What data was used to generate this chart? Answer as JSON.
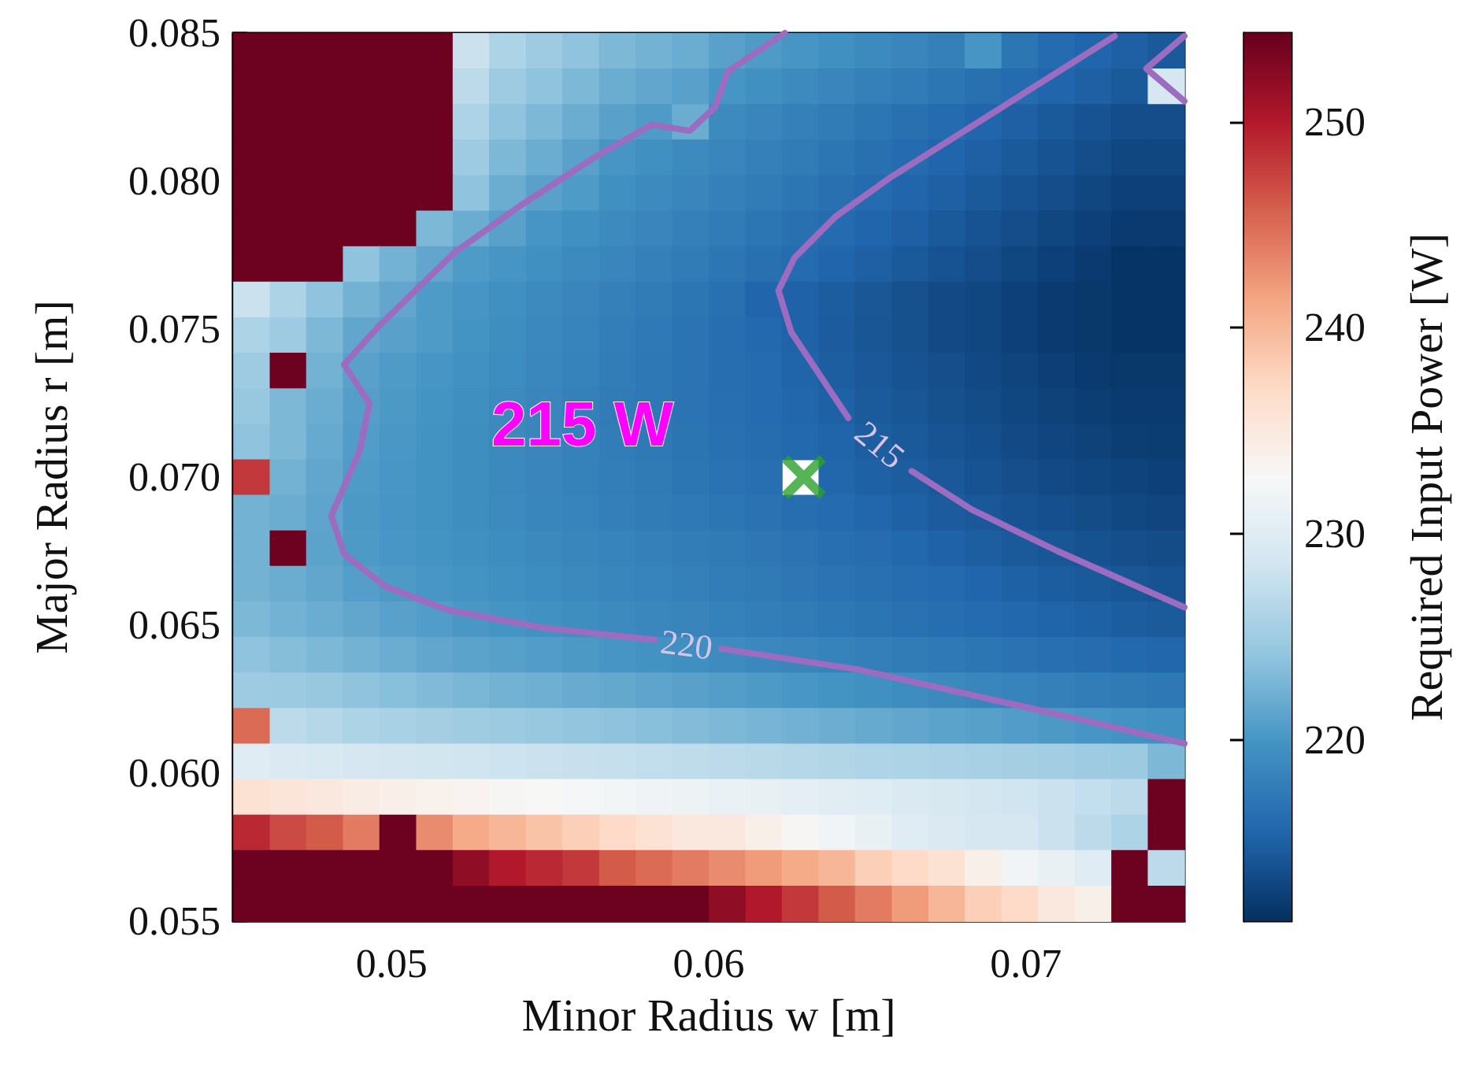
{
  "chart_data": {
    "type": "heatmap",
    "xlabel": "Minor Radius w [m]",
    "ylabel": "Major Radius r [m]",
    "clabel": "Required Input Power [W]",
    "x": [
      0.04558,
      0.04673,
      0.04788,
      0.04904,
      0.05019,
      0.05135,
      0.0525,
      0.05365,
      0.05481,
      0.05596,
      0.05712,
      0.05827,
      0.05942,
      0.06058,
      0.06173,
      0.06288,
      0.06404,
      0.06519,
      0.06635,
      0.0675,
      0.06865,
      0.06981,
      0.07096,
      0.07212,
      0.07327,
      0.07442
    ],
    "y": [
      0.0844,
      0.0832,
      0.082,
      0.0808,
      0.0796,
      0.0784,
      0.0772,
      0.076,
      0.0748,
      0.0736,
      0.0724,
      0.0712,
      0.07,
      0.0688,
      0.0676,
      0.0664,
      0.0652,
      0.064,
      0.0628,
      0.0616,
      0.0604,
      0.0592,
      0.058,
      0.0568,
      0.0556
    ],
    "cells": [
      [
        254,
        254,
        254,
        254,
        254,
        254,
        228,
        226,
        225,
        224,
        223,
        222.5,
        222,
        221,
        220.5,
        220,
        219.5,
        219,
        218.5,
        218,
        220,
        217,
        216,
        215.5,
        215,
        214.5
      ],
      [
        254,
        254,
        254,
        254,
        254,
        254,
        227,
        225,
        224,
        223,
        222,
        221.5,
        221,
        220,
        219.5,
        219,
        218.5,
        218,
        217.5,
        217,
        216.5,
        216,
        215.5,
        215,
        214.5,
        229
      ],
      [
        254,
        254,
        254,
        254,
        254,
        254,
        226,
        224,
        223,
        222,
        221,
        220.5,
        222,
        219,
        218.5,
        218,
        217.5,
        217,
        216.5,
        216,
        215.5,
        215,
        214.5,
        214,
        213.5,
        213.5
      ],
      [
        254,
        254,
        254,
        254,
        254,
        254,
        225,
        223,
        222,
        221,
        220,
        219.5,
        219,
        218.5,
        218,
        217.5,
        217,
        216.5,
        216,
        215.5,
        215,
        214.5,
        214,
        213.5,
        213,
        213
      ],
      [
        254,
        254,
        254,
        254,
        254,
        254,
        224,
        222,
        221,
        220.5,
        219.5,
        219,
        218.5,
        218,
        217.5,
        217,
        216.5,
        216,
        215.5,
        215,
        214.5,
        214,
        213.5,
        213,
        212.5,
        212.5
      ],
      [
        254,
        254,
        254,
        254,
        254,
        223,
        222,
        221,
        220,
        219.5,
        219,
        218.5,
        218,
        217.5,
        217,
        216.5,
        216,
        215.5,
        215,
        214.5,
        214,
        213.5,
        213,
        212.5,
        212,
        212
      ],
      [
        254,
        254,
        254,
        224,
        222.5,
        221.5,
        220.5,
        220,
        219.5,
        219,
        218.5,
        218,
        217.5,
        217,
        216.5,
        216,
        215.5,
        215,
        214.5,
        214,
        213.5,
        213,
        212.5,
        212,
        211.5,
        211.5
      ],
      [
        228,
        226,
        224,
        222.5,
        221.5,
        220.5,
        220,
        219.5,
        219,
        218.5,
        218,
        217.5,
        217,
        216.5,
        215.5,
        215.2,
        214.8,
        214.3,
        213.8,
        213.3,
        213,
        212.5,
        212,
        211.8,
        211.5,
        211.5
      ],
      [
        226,
        225,
        223,
        221.5,
        221,
        220.5,
        219.8,
        219.3,
        218.8,
        218.3,
        217.8,
        217.3,
        216.8,
        216.3,
        215.8,
        215.2,
        214.7,
        214.2,
        213.8,
        213.3,
        213,
        212.5,
        212,
        211.8,
        211.5,
        211.5
      ],
      [
        225,
        254,
        222.5,
        221,
        220.5,
        220,
        219.6,
        219.2,
        218.7,
        218.2,
        217.7,
        217.2,
        216.8,
        216.3,
        216,
        215.4,
        214.9,
        214.4,
        214,
        213.6,
        213.2,
        212.8,
        212.4,
        212,
        211.8,
        211.8
      ],
      [
        224.5,
        223,
        222,
        220.8,
        220.3,
        219.8,
        219.4,
        219,
        218.5,
        218,
        217.6,
        217.2,
        216.8,
        216.4,
        216,
        215.6,
        215.1,
        214.6,
        214.2,
        213.8,
        213.4,
        213,
        212.6,
        212.3,
        212,
        212
      ],
      [
        224,
        223,
        221.8,
        220.6,
        220.2,
        219.7,
        219.3,
        218.9,
        218.5,
        218.1,
        217.7,
        217.3,
        216.9,
        216.5,
        216.2,
        215.8,
        215.4,
        214.9,
        214.5,
        214.1,
        213.7,
        213.3,
        212.9,
        212.6,
        212.3,
        212.2
      ],
      [
        248,
        222.5,
        221.5,
        220.5,
        220.1,
        219.7,
        219.3,
        218.9,
        218.5,
        218.1,
        217.8,
        217.4,
        217,
        216.7,
        216.4,
        null,
        215.6,
        215.1,
        214.8,
        214.4,
        214,
        213.6,
        213.3,
        213,
        212.7,
        212.5
      ],
      [
        222.5,
        222,
        221.3,
        220.3,
        220,
        219.7,
        219.3,
        219,
        218.6,
        218.3,
        217.9,
        217.6,
        217.3,
        217,
        216.7,
        216.3,
        216,
        215.6,
        215.1,
        214.7,
        214.4,
        214,
        213.7,
        213.4,
        213.1,
        212.9
      ],
      [
        222.5,
        254,
        221.2,
        220.4,
        220.1,
        219.8,
        219.5,
        219.2,
        218.9,
        218.6,
        218.3,
        218,
        217.7,
        217.4,
        217.1,
        216.8,
        216.4,
        216.1,
        215.7,
        215.2,
        214.9,
        214.5,
        214.2,
        213.9,
        213.6,
        213.4
      ],
      [
        222.5,
        222,
        221.5,
        220.8,
        220.4,
        220.1,
        219.8,
        219.5,
        219.2,
        218.9,
        218.6,
        218.3,
        218,
        217.7,
        217.4,
        217.1,
        216.8,
        216.5,
        216.2,
        215.9,
        215.5,
        215.1,
        214.8,
        214.5,
        214.2,
        214
      ],
      [
        223,
        222.5,
        222,
        221.5,
        221,
        220.6,
        220.2,
        219.9,
        219.6,
        219.3,
        219,
        218.7,
        218.4,
        218.1,
        217.8,
        217.5,
        217.2,
        216.9,
        216.6,
        216.3,
        216,
        215.7,
        215.4,
        215.1,
        214.8,
        214.6
      ],
      [
        224,
        223.5,
        223,
        222.5,
        222,
        221.5,
        221.2,
        220.9,
        220.6,
        220.3,
        220,
        219.7,
        219.4,
        219.1,
        218.8,
        218.5,
        218.2,
        217.9,
        217.6,
        217.3,
        217,
        216.7,
        216.4,
        216.1,
        215.8,
        215.6
      ],
      [
        225,
        224.8,
        224.5,
        224,
        223.6,
        223.2,
        222.8,
        222.5,
        222.2,
        221.9,
        221.6,
        221.3,
        221,
        220.7,
        220.4,
        220.1,
        219.8,
        219.5,
        219.2,
        218.9,
        218.6,
        218.3,
        218,
        217.7,
        217.4,
        217.2
      ],
      [
        245,
        227,
        226.5,
        226,
        225.7,
        225.4,
        225.1,
        224.8,
        224.5,
        224.2,
        223.9,
        223.6,
        223.3,
        223,
        222.7,
        222.4,
        222.1,
        221.8,
        221.5,
        221.2,
        220.9,
        220.6,
        220.3,
        220,
        219.7,
        219.5
      ],
      [
        230,
        229.5,
        229.3,
        229,
        228.8,
        228.6,
        228.4,
        228.2,
        228,
        227.8,
        227.6,
        227.4,
        227.2,
        227,
        226.8,
        226.6,
        226.4,
        226.2,
        226,
        225.8,
        225.6,
        225.4,
        225.2,
        225,
        224.8,
        223
      ],
      [
        236,
        235.5,
        235,
        234.5,
        234,
        233.7,
        233.4,
        233.1,
        232.8,
        232.5,
        232.2,
        231.9,
        231.6,
        231.3,
        231,
        230.6,
        230.3,
        230,
        229.6,
        229.2,
        228.8,
        228.4,
        228,
        227.5,
        227,
        254
      ],
      [
        249,
        247,
        246,
        244,
        254,
        243,
        241,
        240,
        239,
        238,
        237,
        236,
        235,
        235,
        234,
        233,
        232,
        231,
        230,
        229.5,
        229,
        229,
        228,
        227,
        226,
        254
      ],
      [
        254,
        254,
        254,
        254,
        254,
        254,
        252,
        250,
        249,
        248,
        246,
        245,
        244,
        243,
        242,
        241,
        240,
        238,
        237,
        236,
        234,
        232,
        231,
        230,
        254,
        227
      ],
      [
        254,
        254,
        254,
        254,
        254,
        254,
        254,
        254,
        254,
        254,
        254,
        254,
        254,
        252,
        250,
        248,
        246,
        244,
        242,
        240,
        238,
        237,
        235,
        234,
        254,
        254
      ]
    ],
    "clim": [
      211.2,
      254.3
    ],
    "cticks": [
      220,
      230,
      240,
      250
    ],
    "xlim": [
      0.045,
      0.075
    ],
    "xticks": [
      0.05,
      0.06,
      0.07
    ],
    "ylim": [
      0.055,
      0.085
    ],
    "yticks": [
      0.055,
      {
        "value": 0.06,
        "label": "0.060"
      },
      0.065,
      {
        "value": 0.07,
        "label": "0.070"
      },
      0.075,
      {
        "value": 0.08,
        "label": "0.080"
      },
      0.085
    ],
    "series": [
      {
        "type": "line",
        "name": "215",
        "color": "#9c6cc0",
        "x": [
          0.0728,
          0.0697,
          0.0657,
          0.064,
          0.0627,
          0.0622,
          0.0626,
          0.0644,
          0.0654,
          0.0664,
          0.0683,
          0.071,
          0.075
        ],
        "values": [
          0.0849,
          0.0828,
          0.0801,
          0.0788,
          0.0774,
          0.0763,
          0.0749,
          0.072,
          null,
          0.0702,
          0.0689,
          0.0675,
          0.0656
        ]
      },
      {
        "type": "line",
        "name": "220",
        "color": "#9c6cc0",
        "x": [
          0.0624,
          0.0606,
          0.0602,
          0.0594,
          0.0582,
          0.0564,
          0.0541,
          0.052,
          0.0496,
          0.0485,
          0.0493,
          0.049,
          0.0481,
          0.0485,
          0.0498,
          0.0518,
          0.0548,
          0.0583,
          0.0593,
          0.0604,
          0.0647,
          0.0697,
          0.075
        ],
        "values": [
          0.085,
          0.0837,
          0.0825,
          0.0817,
          0.0819,
          0.0808,
          0.0792,
          0.0776,
          0.0751,
          0.0738,
          0.0725,
          0.0709,
          0.0687,
          0.0674,
          0.0663,
          0.0655,
          0.0649,
          0.0645,
          null,
          0.0642,
          0.0635,
          0.0623,
          0.061
        ]
      },
      {
        "type": "line",
        "color": "#9c6cc0",
        "x": [
          0.075,
          0.0738,
          0.075
        ],
        "values": [
          0.0849,
          0.0838,
          0.0827
        ]
      },
      {
        "type": "scatter",
        "color": "#2ca02c",
        "marker": "cross",
        "x": [
          0.063
        ],
        "values": [
          0.07
        ]
      }
    ],
    "annotations": [
      "215 W"
    ]
  }
}
